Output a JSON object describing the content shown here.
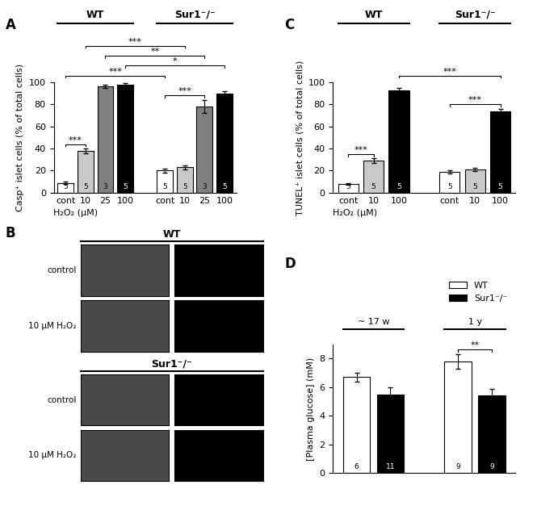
{
  "chart_data": [
    {
      "panel": "A",
      "type": "bar",
      "y_label": "Casp⁺ islet cells (% of total cells)",
      "x_label": "H₂O₂ (μM)",
      "ylim": [
        0,
        100
      ],
      "yticks": [
        0,
        20,
        40,
        60,
        80,
        100
      ],
      "colors": [
        "#ffffff",
        "#c8c8c8",
        "#808080",
        "#000000"
      ],
      "groups": [
        {
          "name": "WT",
          "categories": [
            "cont",
            "10",
            "25",
            "100"
          ],
          "values": [
            9,
            38,
            96,
            98
          ],
          "errors": [
            1,
            2,
            1.5,
            1.5
          ],
          "n": [
            5,
            5,
            3,
            5
          ]
        },
        {
          "name": "Sur1⁻/⁻",
          "categories": [
            "cont",
            "10",
            "25",
            "100"
          ],
          "values": [
            20,
            23,
            78,
            90
          ],
          "errors": [
            1.5,
            2,
            6,
            2
          ],
          "n": [
            5,
            5,
            3,
            5
          ]
        }
      ],
      "comparisons": [
        {
          "from": [
            "WT",
            "cont"
          ],
          "to": [
            "WT",
            "10"
          ],
          "label": "***"
        },
        {
          "from": [
            "Sur1⁻/⁻",
            "cont"
          ],
          "to": [
            "Sur1⁻/⁻",
            "25"
          ],
          "label": "***"
        },
        {
          "from": [
            "WT",
            "cont"
          ],
          "to": [
            "Sur1⁻/⁻",
            "cont"
          ],
          "label": "***"
        },
        {
          "from": [
            "WT",
            "100"
          ],
          "to": [
            "Sur1⁻/⁻",
            "100"
          ],
          "label": "*"
        },
        {
          "from": [
            "WT",
            "25"
          ],
          "to": [
            "Sur1⁻/⁻",
            "25"
          ],
          "label": "**"
        },
        {
          "from": [
            "WT",
            "10"
          ],
          "to": [
            "Sur1⁻/⁻",
            "10"
          ],
          "label": "***"
        }
      ]
    },
    {
      "panel": "C",
      "type": "bar",
      "y_label": "TUNEL⁺ islet cells (% of total cells)",
      "x_label": "H₂O₂ (μM)",
      "ylim": [
        0,
        100
      ],
      "yticks": [
        0,
        20,
        40,
        60,
        80,
        100
      ],
      "colors": [
        "#ffffff",
        "#c8c8c8",
        "#000000"
      ],
      "groups": [
        {
          "name": "WT",
          "categories": [
            "cont",
            "10",
            "100"
          ],
          "values": [
            8,
            29,
            93
          ],
          "errors": [
            1,
            2,
            2
          ],
          "n": [
            5,
            5,
            5
          ]
        },
        {
          "name": "Sur1⁻/⁻",
          "categories": [
            "cont",
            "10",
            "100"
          ],
          "values": [
            19,
            21,
            74
          ],
          "errors": [
            1.5,
            1.5,
            2
          ],
          "n": [
            5,
            5,
            5
          ]
        }
      ],
      "comparisons": [
        {
          "from": [
            "WT",
            "cont"
          ],
          "to": [
            "WT",
            "10"
          ],
          "label": "***"
        },
        {
          "from": [
            "Sur1⁻/⁻",
            "cont"
          ],
          "to": [
            "Sur1⁻/⁻",
            "100"
          ],
          "label": "***"
        },
        {
          "from": [
            "WT",
            "100"
          ],
          "to": [
            "Sur1⁻/⁻",
            "100"
          ],
          "label": "***"
        }
      ]
    },
    {
      "panel": "D",
      "type": "bar",
      "y_label": "[Plasma glucose] (mM)",
      "ylim": [
        0,
        9
      ],
      "yticks": [
        0,
        2,
        4,
        6,
        8
      ],
      "tick_labels": "y",
      "legend": "upper right",
      "categories": [
        "~ 17 w",
        "1 y"
      ],
      "series": [
        {
          "name": "WT",
          "color": "#ffffff",
          "values": [
            6.7,
            7.8
          ],
          "errors": [
            0.3,
            0.5
          ],
          "n": [
            6,
            9
          ]
        },
        {
          "name": "Sur1⁻/⁻",
          "color": "#000000",
          "values": [
            5.5,
            5.4
          ],
          "errors": [
            0.5,
            0.5
          ],
          "n": [
            11,
            9
          ]
        }
      ],
      "comparisons": [
        {
          "from": [
            "1 y",
            "WT"
          ],
          "to": [
            "1 y",
            "Sur1⁻/⁻"
          ],
          "label": "**"
        }
      ]
    }
  ],
  "image_panel": {
    "panel": "B",
    "groups": [
      {
        "name": "WT",
        "rows": [
          "control",
          "10 μM H₂O₂"
        ]
      },
      {
        "name": "Sur1⁻/⁻",
        "rows": [
          "control",
          "10 μM H₂O₂"
        ]
      }
    ]
  }
}
